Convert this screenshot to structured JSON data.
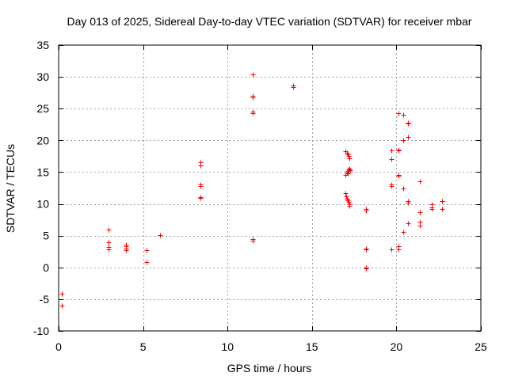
{
  "chart_data": {
    "type": "scatter",
    "title": "Day 013 of 2025, Sidereal Day-to-day VTEC variation (SDTVAR) for receiver mbar",
    "xlabel": "GPS time / hours",
    "ylabel": "SDTVAR / TECUs",
    "xlim": [
      0,
      25
    ],
    "ylim": [
      -10,
      35
    ],
    "xticks": [
      0,
      5,
      10,
      15,
      20,
      25
    ],
    "yticks": [
      -10,
      -5,
      0,
      5,
      10,
      15,
      20,
      25,
      30,
      35
    ],
    "grid": true,
    "marker": "+",
    "color": "#ff0000",
    "series": [
      {
        "name": "SDTVAR",
        "points": [
          [
            0.2,
            -4.1
          ],
          [
            0.2,
            -6.0
          ],
          [
            2.95,
            5.9
          ],
          [
            2.95,
            4.0
          ],
          [
            2.95,
            3.2
          ],
          [
            2.95,
            2.8
          ],
          [
            4.0,
            3.6
          ],
          [
            4.0,
            3.3
          ],
          [
            4.0,
            3.0
          ],
          [
            4.0,
            2.7
          ],
          [
            5.2,
            2.7
          ],
          [
            5.2,
            0.9
          ],
          [
            6.0,
            5.1
          ],
          [
            8.4,
            16.6
          ],
          [
            8.4,
            16.0
          ],
          [
            8.4,
            13.0
          ],
          [
            8.4,
            12.8
          ],
          [
            8.4,
            11.1
          ],
          [
            8.4,
            10.9
          ],
          [
            11.5,
            30.4
          ],
          [
            11.5,
            27.0
          ],
          [
            11.5,
            26.8
          ],
          [
            11.5,
            24.5
          ],
          [
            11.5,
            24.3
          ],
          [
            11.5,
            4.5
          ],
          [
            11.5,
            4.2
          ],
          [
            13.9,
            28.6
          ],
          [
            13.9,
            28.4
          ],
          [
            17.0,
            18.3
          ],
          [
            17.05,
            18.0
          ],
          [
            17.1,
            17.8
          ],
          [
            17.15,
            17.5
          ],
          [
            17.2,
            17.2
          ],
          [
            17.0,
            14.6
          ],
          [
            17.05,
            14.9
          ],
          [
            17.1,
            15.2
          ],
          [
            17.15,
            15.4
          ],
          [
            17.2,
            15.6
          ],
          [
            17.25,
            15.3
          ],
          [
            17.1,
            14.8
          ],
          [
            17.0,
            11.7
          ],
          [
            17.02,
            11.2
          ],
          [
            17.05,
            10.8
          ],
          [
            17.1,
            10.6
          ],
          [
            17.15,
            10.3
          ],
          [
            17.2,
            10.0
          ],
          [
            17.22,
            9.7
          ],
          [
            18.2,
            9.2
          ],
          [
            18.2,
            9.0
          ],
          [
            18.2,
            3.0
          ],
          [
            18.2,
            2.8
          ],
          [
            18.2,
            0.0
          ],
          [
            18.2,
            -0.2
          ],
          [
            19.7,
            18.4
          ],
          [
            19.7,
            17.0
          ],
          [
            19.7,
            13.0
          ],
          [
            19.7,
            12.8
          ],
          [
            19.7,
            2.8
          ],
          [
            20.1,
            24.3
          ],
          [
            20.1,
            18.6
          ],
          [
            20.1,
            18.4
          ],
          [
            20.1,
            14.6
          ],
          [
            20.1,
            14.4
          ],
          [
            20.1,
            3.3
          ],
          [
            20.1,
            2.9
          ],
          [
            20.4,
            24.0
          ],
          [
            20.4,
            20.0
          ],
          [
            20.4,
            12.4
          ],
          [
            20.4,
            5.6
          ],
          [
            20.7,
            22.8
          ],
          [
            20.7,
            22.6
          ],
          [
            20.7,
            20.6
          ],
          [
            20.7,
            10.4
          ],
          [
            20.7,
            10.2
          ],
          [
            20.7,
            6.9
          ],
          [
            21.4,
            13.5
          ],
          [
            21.4,
            8.7
          ],
          [
            21.4,
            7.2
          ],
          [
            21.4,
            6.6
          ],
          [
            22.1,
            10.0
          ],
          [
            22.1,
            9.5
          ],
          [
            22.1,
            9.2
          ],
          [
            22.7,
            10.4
          ],
          [
            22.7,
            9.2
          ]
        ]
      }
    ]
  }
}
